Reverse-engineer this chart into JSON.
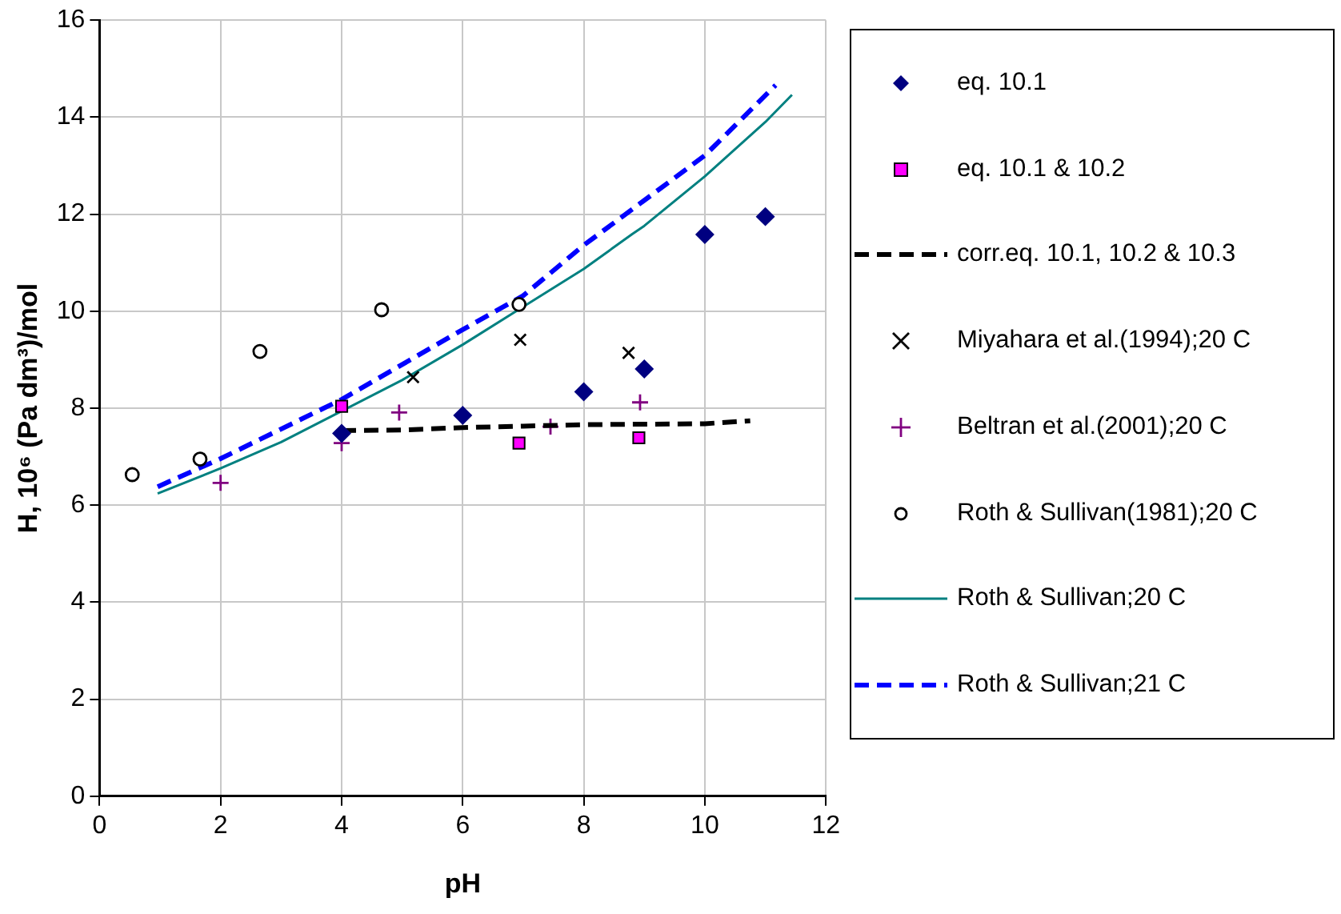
{
  "chart_data": {
    "type": "scatter",
    "xlabel": "pH",
    "ylabel": "H, 10⁶ (Pa dm³)/mol",
    "xlim": [
      0,
      12
    ],
    "xticks": [
      0,
      2,
      4,
      6,
      8,
      10,
      12
    ],
    "ylim": [
      0,
      16
    ],
    "yticks": [
      0,
      2,
      4,
      6,
      8,
      10,
      12,
      14,
      16
    ],
    "grid": true,
    "legend": "right",
    "series": [
      {
        "name": "eq. 10.1",
        "type": "scatter",
        "marker": "diamond",
        "color": "#000080",
        "x": [
          4,
          6,
          8,
          9,
          10,
          11
        ],
        "values": [
          7.48,
          7.85,
          8.34,
          8.81,
          11.58,
          11.95
        ]
      },
      {
        "name": "eq. 10.1 & 10.2",
        "type": "scatter",
        "marker": "square",
        "color": "#ff00ff",
        "x": [
          4,
          6.93,
          8.91
        ],
        "values": [
          8.04,
          7.28,
          7.39
        ]
      },
      {
        "name": "corr.eq. 10.1, 10.2 & 10.3",
        "type": "line",
        "marker": "none",
        "line_style": "dashed",
        "color": "#000000",
        "x": [
          4,
          5,
          6,
          7,
          8,
          9,
          10,
          10.75
        ],
        "values": [
          7.54,
          7.55,
          7.6,
          7.63,
          7.66,
          7.67,
          7.68,
          7.74
        ]
      },
      {
        "name": "Miyahara et al.(1994);20 C",
        "type": "scatter",
        "marker": "x",
        "color": "#000000",
        "x": [
          5.18,
          6.95,
          8.74
        ],
        "values": [
          8.64,
          9.41,
          9.14
        ]
      },
      {
        "name": "Beltran et al.(2001);20 C",
        "type": "scatter",
        "marker": "cross",
        "color": "#800080",
        "x": [
          2.0,
          4.0,
          4.95,
          7.45,
          8.93
        ],
        "values": [
          6.46,
          7.28,
          7.91,
          7.62,
          8.12
        ]
      },
      {
        "name": "Roth & Sullivan(1981);20 C",
        "type": "scatter",
        "marker": "circle",
        "color": "#000000",
        "x": [
          0.54,
          1.66,
          2.65,
          4.66,
          6.93
        ],
        "values": [
          6.63,
          6.95,
          9.17,
          10.03,
          10.14
        ]
      },
      {
        "name": "Roth & Sullivan;20 C",
        "type": "line",
        "marker": "none",
        "line_style": "solid",
        "color": "#008080",
        "x": [
          0.96,
          2,
          3,
          4,
          5,
          6,
          7,
          8,
          8.8,
          9,
          10,
          11,
          11.44
        ],
        "values": [
          6.24,
          6.76,
          7.3,
          7.94,
          8.58,
          9.31,
          10.09,
          10.87,
          11.59,
          11.76,
          12.78,
          13.9,
          14.46
        ]
      },
      {
        "name": "Roth & Sullivan;21 C",
        "type": "line",
        "marker": "none",
        "line_style": "dashed",
        "color": "#0000ff",
        "x": [
          0.96,
          2,
          4,
          6,
          7,
          8,
          10,
          11.17
        ],
        "values": [
          6.38,
          6.96,
          8.18,
          9.62,
          10.32,
          11.36,
          13.21,
          14.66
        ]
      }
    ]
  }
}
